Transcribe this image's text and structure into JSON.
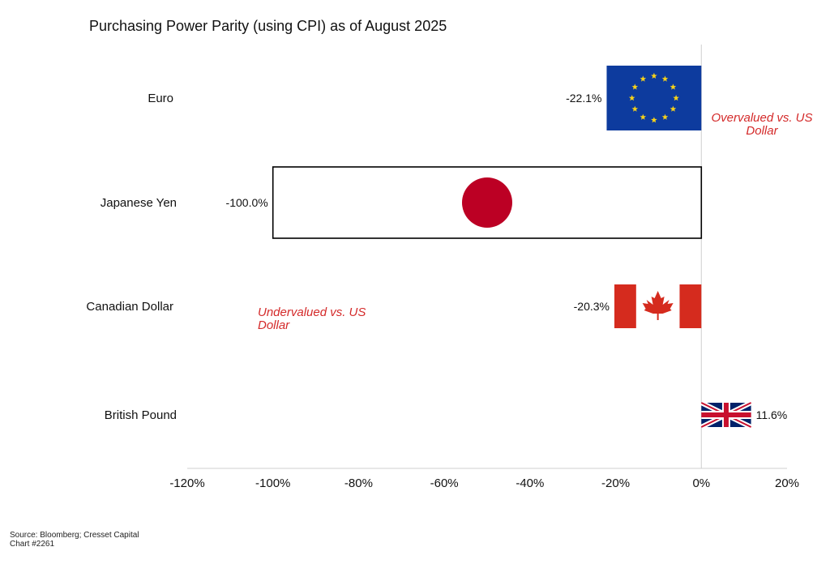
{
  "chart_data": {
    "type": "bar",
    "orientation": "horizontal",
    "title": "Purchasing Power Parity (using CPI) as of August 2025",
    "categories": [
      "Euro",
      "Japanese Yen",
      "Canadian Dollar",
      "British Pound"
    ],
    "values": [
      -22.1,
      -100.0,
      -20.3,
      11.6
    ],
    "value_labels": [
      "-22.1%",
      "-100.0%",
      "-20.3%",
      "11.6%"
    ],
    "bar_fills": [
      "eu-flag",
      "japan-flag",
      "canada-flag",
      "uk-flag"
    ],
    "xlim": [
      -120,
      20
    ],
    "xticks": [
      -120,
      -100,
      -80,
      -60,
      -40,
      -20,
      0,
      20
    ],
    "xtick_labels": [
      "-120%",
      "-100%",
      "-80%",
      "-60%",
      "-40%",
      "-20%",
      "0%",
      "20%"
    ],
    "annotations": [
      {
        "lines": [
          "Overvalued vs. US",
          "Dollar"
        ],
        "color": "#d42a2a",
        "style": "italic"
      },
      {
        "lines": [
          "Undervalued vs. US",
          "Dollar"
        ],
        "color": "#d42a2a",
        "style": "italic"
      }
    ],
    "grid": false,
    "legend": "none"
  },
  "source": {
    "line1": "Source: Bloomberg; Cresset Capital",
    "line2": "Chart  #2261"
  },
  "colors": {
    "eu_blue": "#0d3b9e",
    "eu_star": "#f6d21a",
    "japan_red": "#bc0024",
    "canada_red": "#d52b1e",
    "uk_blue": "#012169",
    "uk_red": "#c8102e",
    "annotation_red": "#d42a2a",
    "axis_gray": "#cfcfcf"
  }
}
